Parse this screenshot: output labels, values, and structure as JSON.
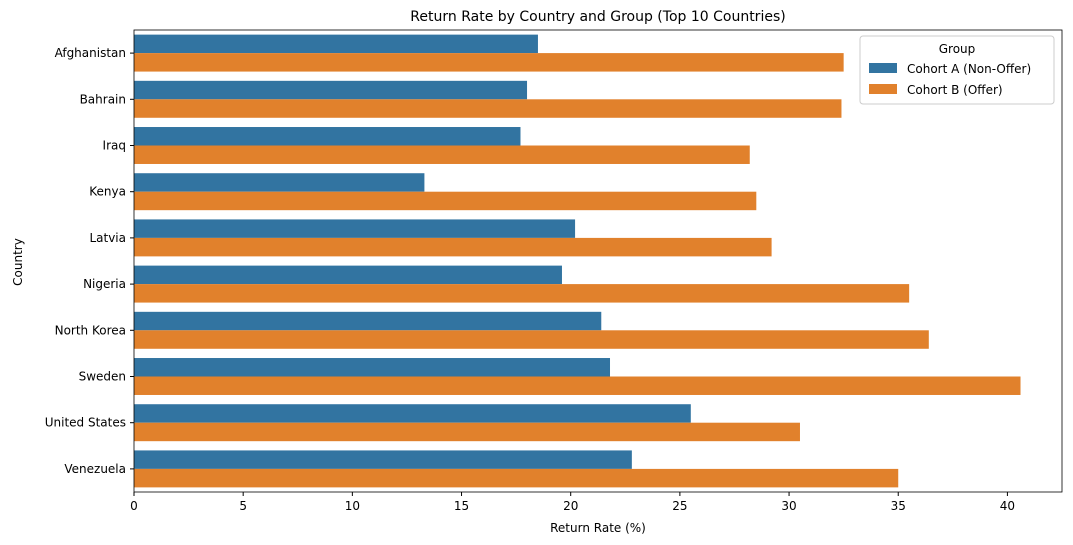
{
  "chart_data": {
    "type": "bar",
    "orientation": "horizontal",
    "title": "Return Rate by Country and Group (Top 10 Countries)",
    "xlabel": "Return Rate (%)",
    "ylabel": "Country",
    "xlim": [
      0,
      42.5
    ],
    "xticks": [
      0,
      5,
      10,
      15,
      20,
      25,
      30,
      35,
      40
    ],
    "grid": false,
    "legend": {
      "title": "Group",
      "placement": "top-right"
    },
    "categories": [
      "Afghanistan",
      "Bahrain",
      "Iraq",
      "Kenya",
      "Latvia",
      "Nigeria",
      "North Korea",
      "Sweden",
      "United States",
      "Venezuela"
    ],
    "series": [
      {
        "name": "Cohort A (Non-Offer)",
        "color": "#3274a1",
        "values": [
          18.5,
          18.0,
          17.7,
          13.3,
          20.2,
          19.6,
          21.4,
          21.8,
          25.5,
          22.8
        ]
      },
      {
        "name": "Cohort B (Offer)",
        "color": "#e1812c",
        "values": [
          32.5,
          32.4,
          28.2,
          28.5,
          29.2,
          35.5,
          36.4,
          40.6,
          30.5,
          35.0
        ]
      }
    ]
  }
}
